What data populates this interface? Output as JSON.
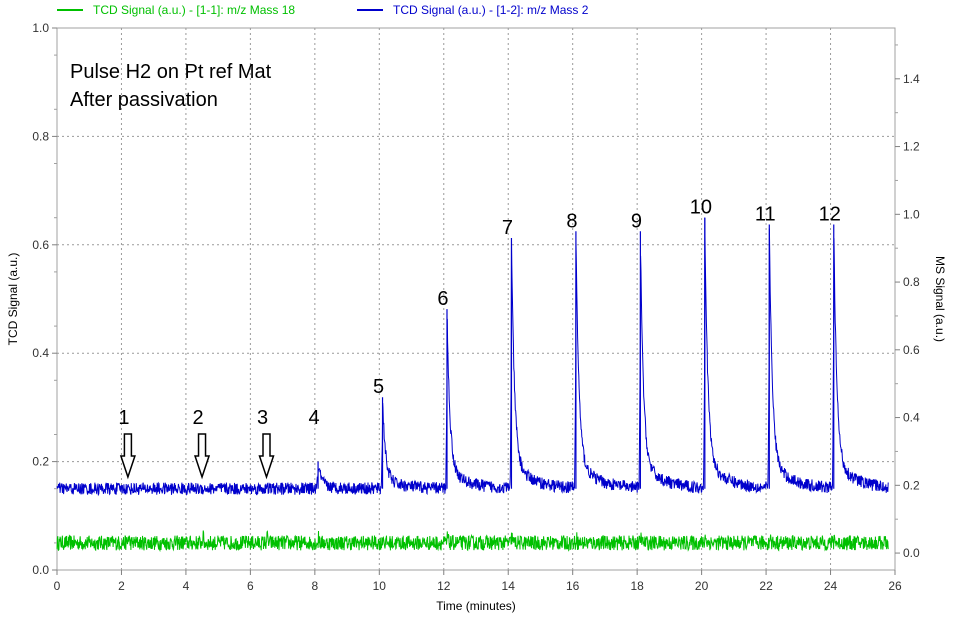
{
  "chart_data": {
    "type": "line",
    "legend": {
      "placement": "top-left",
      "entries": [
        {
          "label": "TCD Signal (a.u.) - [1-1]: m/z Mass 18",
          "color": "#00c000"
        },
        {
          "label": "TCD Signal (a.u.) - [1-2]: m/z Mass 2",
          "color": "#0000cc"
        }
      ]
    },
    "xlabel": "Time (minutes)",
    "ylabel_left": "TCD Signal (a.u.)",
    "ylabel_right": "MS Signal (a.u.)",
    "xlim": [
      0,
      26
    ],
    "ylim_left": [
      0,
      1.0
    ],
    "ylim_right": [
      -0.05,
      1.55
    ],
    "x_ticks": [
      "0",
      "2",
      "4",
      "6",
      "8",
      "10",
      "12",
      "14",
      "16",
      "18",
      "20",
      "22",
      "24",
      "26"
    ],
    "y_left_ticks": [
      "0.0",
      "0.2",
      "0.4",
      "0.6",
      "0.8",
      "1.0"
    ],
    "y_right_ticks": [
      "0.0",
      "0.2",
      "0.4",
      "0.6",
      "0.8",
      "1.0",
      "1.2",
      "1.4"
    ],
    "grid": true,
    "annotation_lines": [
      "Pulse H2 on Pt ref Mat",
      "After passivation"
    ],
    "series": [
      {
        "name": "TCD Signal (a.u.) - [1-1]: m/z Mass 18",
        "axis": "right",
        "color": "#00c000",
        "baseline": 0.03,
        "noise": 0.022,
        "x_range": [
          0,
          25.8
        ]
      },
      {
        "name": "TCD Signal (a.u.) - [1-2]: m/z Mass 2",
        "axis": "right",
        "color": "#0000cc",
        "baseline": 0.19,
        "noise": 0.018,
        "x_range": [
          0,
          25.8
        ]
      }
    ],
    "pulses": [
      {
        "label": "1",
        "x": 2.2,
        "peak": 0.19,
        "arrow": true
      },
      {
        "label": "2",
        "x": 4.5,
        "peak": 0.19,
        "arrow": true
      },
      {
        "label": "3",
        "x": 6.5,
        "peak": 0.19,
        "arrow": true
      },
      {
        "label": "4",
        "x": 8.1,
        "peak": 0.27
      },
      {
        "label": "5",
        "x": 10.1,
        "peak": 0.46
      },
      {
        "label": "6",
        "x": 12.1,
        "peak": 0.72
      },
      {
        "label": "7",
        "x": 14.1,
        "peak": 0.93
      },
      {
        "label": "8",
        "x": 16.1,
        "peak": 0.95
      },
      {
        "label": "9",
        "x": 18.1,
        "peak": 0.95
      },
      {
        "label": "10",
        "x": 20.1,
        "peak": 0.99
      },
      {
        "label": "11",
        "x": 22.1,
        "peak": 0.97
      },
      {
        "label": "12",
        "x": 24.1,
        "peak": 0.97
      }
    ]
  }
}
